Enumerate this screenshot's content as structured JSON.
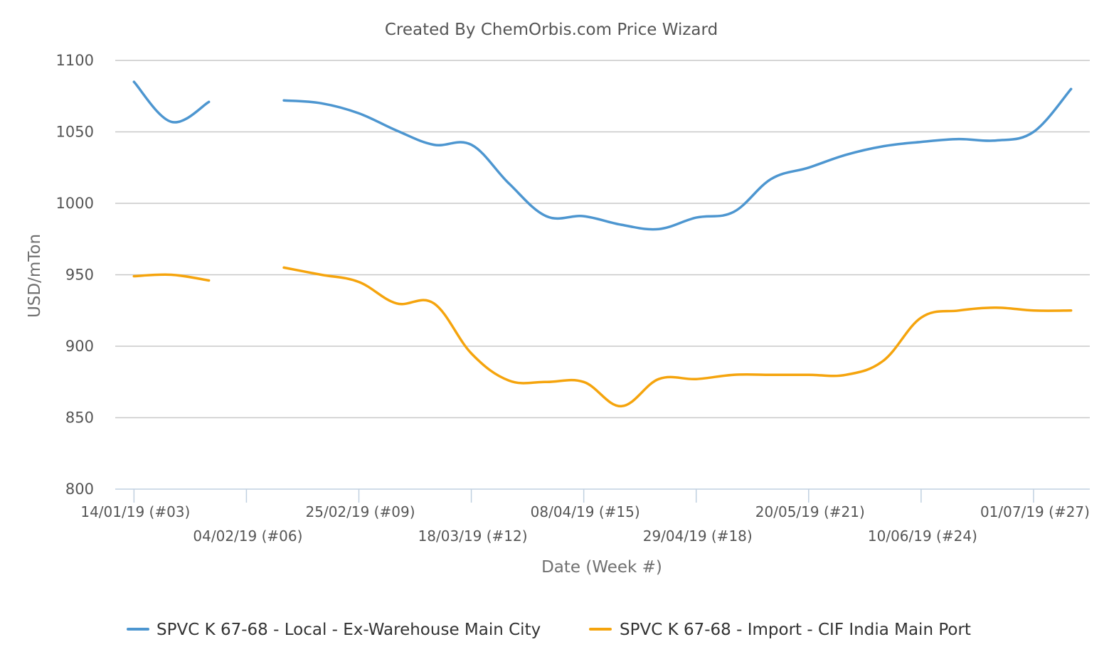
{
  "chart_data": {
    "type": "line",
    "title": "Created By ChemOrbis.com Price Wizard",
    "xlabel": "Date (Week #)",
    "ylabel": "USD/mTon",
    "ylim": [
      800,
      1100
    ],
    "yticks": [
      800,
      850,
      900,
      950,
      1000,
      1050,
      1100
    ],
    "grid": true,
    "legend_position": "bottom",
    "x_tick_labels": [
      "14/01/19 (#03)",
      "04/02/19 (#06)",
      "25/02/19 (#09)",
      "18/03/19 (#12)",
      "08/04/19 (#15)",
      "29/04/19 (#18)",
      "20/05/19 (#21)",
      "10/06/19 (#24)",
      "01/07/19 (#27)"
    ],
    "x_tick_weeks": [
      3,
      6,
      9,
      12,
      15,
      18,
      21,
      24,
      27
    ],
    "x_range_weeks": [
      2.5,
      28.5
    ],
    "series": [
      {
        "name": "SPVC K 67-68 - Local - Ex-Warehouse Main City",
        "color": "#4d96d0",
        "weeks": [
          3,
          4,
          5,
          null,
          7,
          8,
          9,
          10,
          11,
          12,
          13,
          14,
          15,
          16,
          17,
          18,
          19,
          20,
          21,
          22,
          23,
          24,
          25,
          26,
          27,
          28
        ],
        "values": [
          1085,
          1057,
          1071,
          null,
          1072,
          1070,
          1063,
          1051,
          1041,
          1041,
          1014,
          991,
          991,
          985,
          982,
          990,
          994,
          1017,
          1025,
          1034,
          1040,
          1043,
          1045,
          1044,
          1050,
          1080
        ]
      },
      {
        "name": "SPVC K 67-68 - Import - CIF India Main Port",
        "color": "#f5a40d",
        "weeks": [
          3,
          4,
          5,
          null,
          7,
          8,
          9,
          10,
          11,
          12,
          13,
          14,
          15,
          16,
          17,
          18,
          19,
          20,
          21,
          22,
          23,
          24,
          25,
          26,
          27,
          28
        ],
        "values": [
          949,
          950,
          946,
          null,
          955,
          950,
          945,
          930,
          930,
          895,
          876,
          875,
          875,
          858,
          877,
          877,
          880,
          880,
          880,
          880,
          890,
          920,
          925,
          927,
          925,
          925
        ]
      }
    ]
  }
}
